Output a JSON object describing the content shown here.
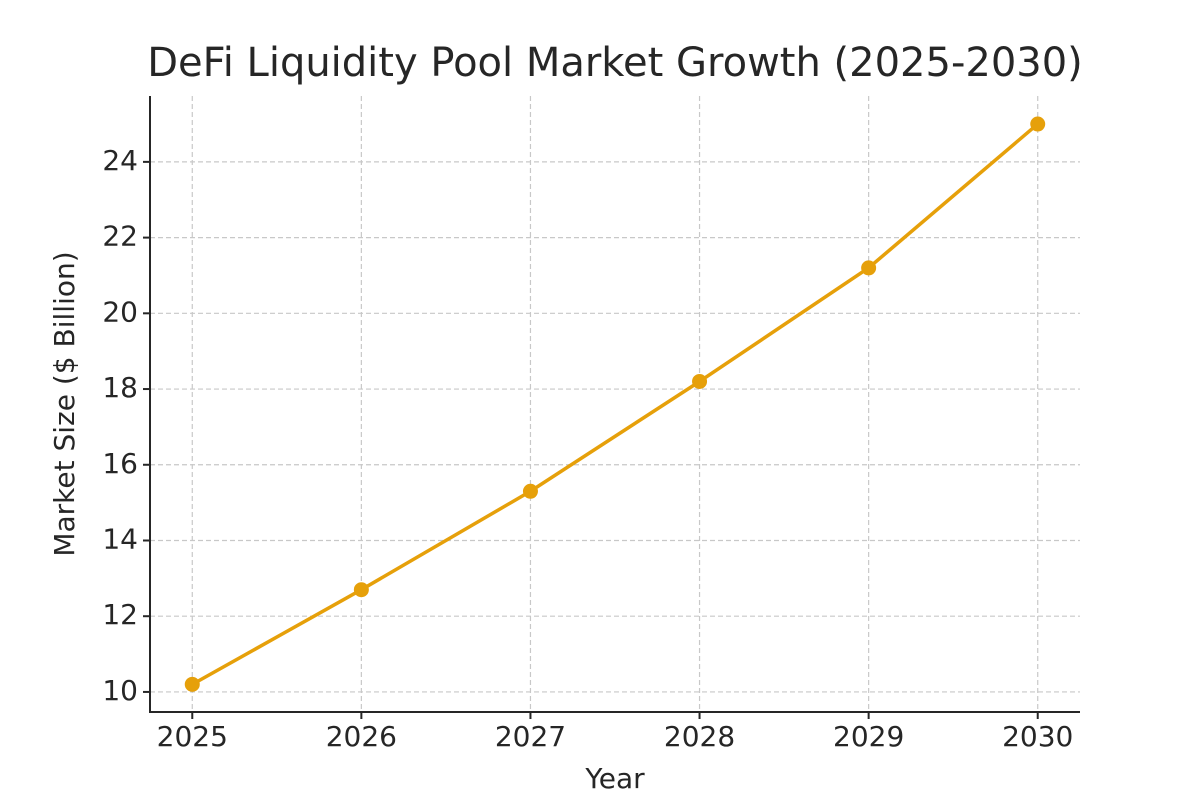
{
  "chart_data": {
    "type": "line",
    "title": "DeFi Liquidity Pool Market Growth (2025-2030)",
    "x_label": "Year",
    "y_label": "Market Size ($ Billion)",
    "x": [
      2025,
      2026,
      2027,
      2028,
      2029,
      2030
    ],
    "series": [
      {
        "name": "Market Size",
        "color": "#e6a00a",
        "values": [
          10.2,
          12.7,
          15.3,
          18.2,
          21.2,
          25.0
        ]
      }
    ],
    "xlim": [
      2024.75,
      2030.25
    ],
    "xticks": [
      2025,
      2026,
      2027,
      2028,
      2029,
      2030
    ],
    "ylim": [
      9.47,
      25.74
    ],
    "yticks": [
      10,
      12,
      14,
      16,
      18,
      20,
      22,
      24
    ],
    "grid": true
  }
}
